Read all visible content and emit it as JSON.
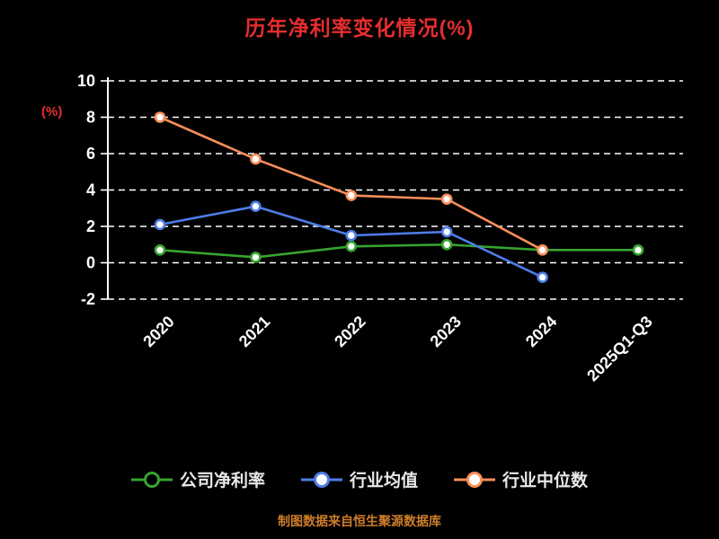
{
  "title": "历年净利率变化情况(%)",
  "y_axis_label": "(%)",
  "footer": "制图数据来自恒生聚源数据库",
  "colors": {
    "background": "#000000",
    "title": "#e62e2e",
    "axis": "#ffffff",
    "footer": "#cf7d2b",
    "company": "#36a42f",
    "industry_avg": "#4e7ce8",
    "industry_median": "#f98e5a"
  },
  "chart_data": {
    "type": "line",
    "categories": [
      "2020",
      "2021",
      "2022",
      "2023",
      "2024",
      "2025Q1-Q3"
    ],
    "series": [
      {
        "name": "公司净利率",
        "color": "#36a42f",
        "values": [
          0.7,
          0.3,
          0.9,
          1.0,
          0.7,
          0.7
        ]
      },
      {
        "name": "行业均值",
        "color": "#4e7ce8",
        "values": [
          2.1,
          3.1,
          1.5,
          1.7,
          -0.8,
          null
        ]
      },
      {
        "name": "行业中位数",
        "color": "#f98e5a",
        "values": [
          8.0,
          5.7,
          3.7,
          3.5,
          0.7,
          null
        ]
      }
    ],
    "ylim": [
      -2,
      10
    ],
    "yticks": [
      10,
      8,
      6,
      4,
      2,
      0,
      -2
    ],
    "grid": true,
    "grid_style": "dashed",
    "legend_position": "bottom"
  }
}
